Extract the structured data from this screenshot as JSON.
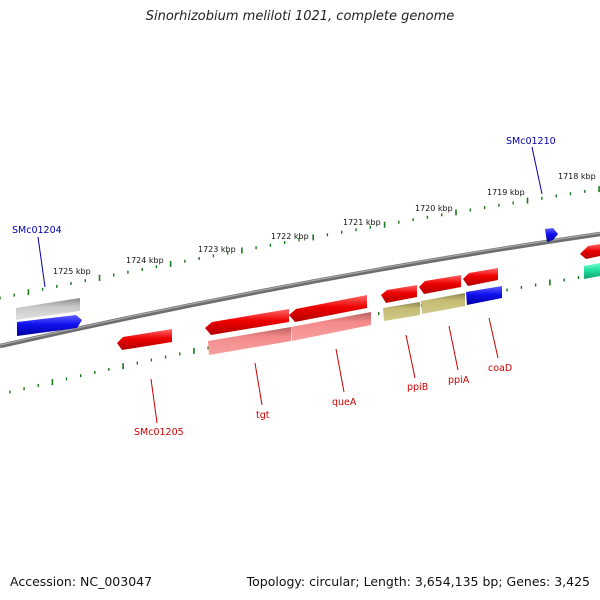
{
  "title": "Sinorhizobium meliloti 1021, complete genome",
  "footer": {
    "accession": "Accession: NC_003047",
    "topology": "Topology: circular; Length: 3,654,135 bp; Genes: 3,425"
  },
  "ticks": [
    {
      "label": "1725 kbp"
    },
    {
      "label": "1724 kbp"
    },
    {
      "label": "1723 kbp"
    },
    {
      "label": "1722 kbp"
    },
    {
      "label": "1721 kbp"
    },
    {
      "label": "1720 kbp"
    },
    {
      "label": "1719 kbp"
    },
    {
      "label": "1718 kbp"
    }
  ],
  "genes": [
    {
      "name": "SMc01204",
      "strand": "+",
      "color": "#1010e0"
    },
    {
      "name": "SMc01210",
      "strand": "+",
      "color": "#1010e0"
    },
    {
      "name": "SMc01205",
      "strand": "-",
      "color": "#cc0000"
    },
    {
      "name": "tgt",
      "strand": "-",
      "color": "#cc0000"
    },
    {
      "name": "queA",
      "strand": "-",
      "color": "#cc0000"
    },
    {
      "name": "ppiB",
      "strand": "-",
      "color": "#cc0000"
    },
    {
      "name": "ppiA",
      "strand": "-",
      "color": "#cc0000"
    },
    {
      "name": "coaD",
      "strand": "-",
      "color": "#cc0000"
    }
  ],
  "colors": {
    "backbone": "#7a7a7a",
    "tick": "#1a7a1a",
    "forward_label": "#0000b0",
    "reverse_label": "#cc0000",
    "cds_red": "#e00000",
    "cds_pink": "#f07878",
    "cds_olive": "#b8b060",
    "cds_blue": "#1010e0",
    "cds_gray": "#b0b0b0",
    "cds_teal": "#20e0a0"
  }
}
